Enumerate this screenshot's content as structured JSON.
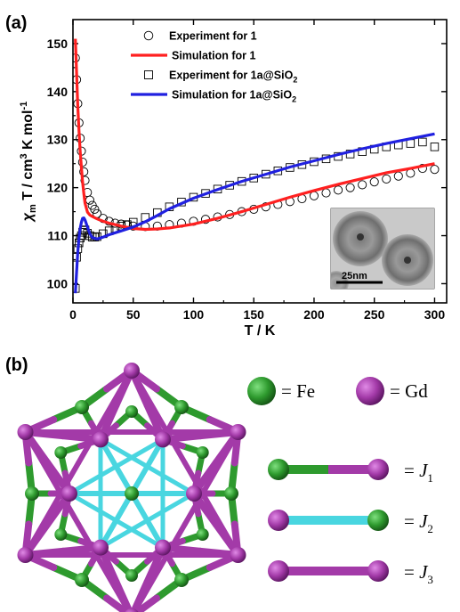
{
  "panel_a_label": "(a)",
  "panel_b_label": "(b)",
  "chart_data": {
    "type": "scatter",
    "xlabel": "T / K",
    "ylabel": {
      "pre": "χ",
      "sub": "m",
      "mid": " T / cm",
      "sup1": "3",
      "post": " K mol",
      "sup2": "-1"
    },
    "xlim": [
      0,
      310
    ],
    "ylim": [
      96,
      155
    ],
    "xticks": [
      0,
      50,
      100,
      150,
      200,
      250,
      300
    ],
    "yticks": [
      100,
      110,
      120,
      130,
      140,
      150
    ],
    "legend_position": "top-center",
    "series": [
      {
        "name": "Experiment for 1",
        "kind": "scatter",
        "marker": "circle",
        "color": "#000000",
        "x": [
          2,
          3,
          4,
          5,
          6,
          7,
          8,
          9,
          10,
          12,
          14,
          16,
          18,
          20,
          25,
          30,
          35,
          40,
          45,
          50,
          60,
          70,
          80,
          90,
          100,
          110,
          120,
          130,
          140,
          150,
          160,
          170,
          180,
          190,
          200,
          210,
          220,
          230,
          240,
          250,
          260,
          270,
          280,
          290,
          300
        ],
        "y": [
          147,
          142.5,
          137.5,
          133.5,
          130.3,
          127.6,
          125.3,
          123.3,
          121.5,
          119,
          117.4,
          116.3,
          115.5,
          114.6,
          113.6,
          113,
          112.6,
          112.4,
          112.2,
          112,
          111.9,
          112,
          112.3,
          112.6,
          113,
          113.4,
          113.9,
          114.4,
          115,
          115.5,
          116,
          116.5,
          117.1,
          117.7,
          118.3,
          118.9,
          119.5,
          120,
          120.6,
          121.2,
          121.8,
          122.4,
          123,
          124,
          123.8
        ]
      },
      {
        "name": "Simulation for 1",
        "kind": "line",
        "color": "#ff2020",
        "x": [
          2,
          3,
          4,
          5,
          6,
          7,
          8,
          9,
          10,
          12,
          14,
          16,
          20,
          25,
          30,
          40,
          50,
          60,
          70,
          80,
          100,
          120,
          140,
          160,
          180,
          200,
          220,
          240,
          260,
          280,
          300
        ],
        "y": [
          151,
          143.8,
          137,
          131.8,
          127.6,
          124.2,
          121.2,
          118.8,
          116.8,
          114.9,
          114.3,
          114,
          113.5,
          113,
          112.6,
          112,
          111.5,
          111.3,
          111.4,
          111.6,
          112.4,
          113.6,
          115,
          116.5,
          118,
          119.4,
          120.7,
          121.9,
          123.1,
          124,
          125
        ]
      },
      {
        "name": "Experiment for 1a@SiO2",
        "kind": "scatter",
        "marker": "square",
        "color": "#000000",
        "x": [
          2,
          3,
          4,
          5,
          6,
          7,
          8,
          9,
          10,
          12,
          14,
          16,
          18,
          20,
          25,
          30,
          35,
          40,
          45,
          50,
          60,
          70,
          80,
          90,
          100,
          110,
          120,
          130,
          140,
          150,
          160,
          170,
          180,
          190,
          200,
          210,
          220,
          230,
          240,
          250,
          260,
          270,
          280,
          290,
          300
        ],
        "y": [
          99,
          105.5,
          107.3,
          108.5,
          109.5,
          110,
          110.7,
          111.1,
          111.2,
          110.5,
          110,
          109.7,
          109.7,
          109.8,
          110.4,
          111,
          111.5,
          112,
          112.3,
          112.8,
          113.8,
          114.8,
          116,
          117,
          118,
          118.8,
          119.7,
          120.5,
          121.3,
          122,
          122.8,
          123.5,
          124.2,
          124.8,
          125.4,
          126,
          126.5,
          127,
          127.5,
          128,
          128.5,
          128.9,
          129.2,
          129.5,
          128.5
        ]
      },
      {
        "name": "Simulation for 1a@SiO2",
        "kind": "line",
        "color": "#2020e0",
        "x": [
          2,
          3,
          4,
          5,
          6,
          7,
          8,
          9,
          10,
          12,
          14,
          16,
          20,
          25,
          30,
          40,
          50,
          60,
          70,
          80,
          100,
          120,
          140,
          160,
          180,
          200,
          220,
          240,
          260,
          280,
          300
        ],
        "y": [
          98,
          102.5,
          106.5,
          109.5,
          111.5,
          112.8,
          113.6,
          113.7,
          113.3,
          111.8,
          110.4,
          109.6,
          109.3,
          109.7,
          110.2,
          111,
          111.8,
          112.9,
          114.2,
          115.6,
          117.8,
          119.6,
          121.3,
          122.8,
          124.3,
          125.6,
          126.9,
          128.1,
          129.2,
          130.2,
          131.2
        ]
      }
    ]
  },
  "inset": {
    "scale_label": "25nm"
  },
  "structure_key": {
    "atoms": [
      {
        "name": "Fe",
        "label": "= Fe",
        "color": "#2e9a2e"
      },
      {
        "name": "Gd",
        "label": "= Gd",
        "color": "#a33aa8"
      }
    ],
    "couplings": [
      {
        "label": "= J",
        "sub": "1",
        "left_color": "#2e9a2e",
        "right_color": "#a33aa8",
        "bond_left": "#2e9a2e",
        "bond_right": "#a33aa8"
      },
      {
        "label": "= J",
        "sub": "2",
        "left_color": "#a33aa8",
        "right_color": "#2e9a2e",
        "bond_left": "#49d6e0",
        "bond_right": "#49d6e0"
      },
      {
        "label": "= J",
        "sub": "3",
        "left_color": "#a33aa8",
        "right_color": "#a33aa8",
        "bond_left": "#a33aa8",
        "bond_right": "#a33aa8"
      }
    ]
  }
}
